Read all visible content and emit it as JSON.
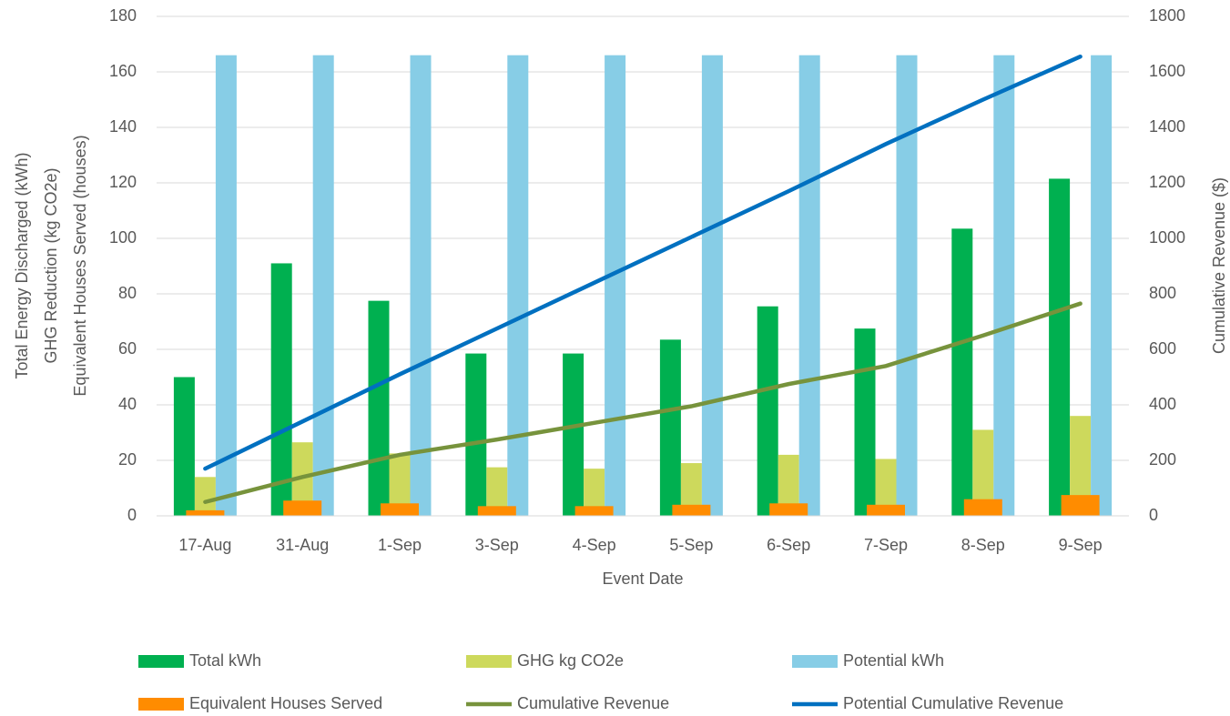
{
  "chart_data": {
    "type": "bar",
    "categories": [
      "17-Aug",
      "31-Aug",
      "1-Sep",
      "3-Sep",
      "4-Sep",
      "5-Sep",
      "6-Sep",
      "7-Sep",
      "8-Sep",
      "9-Sep"
    ],
    "xlabel": "Event Date",
    "ylabel": [
      "Total Energy Discharged (kWh)",
      "GHG Reduction (kg CO2e)",
      "Equivalent Houses Served (houses)"
    ],
    "y2label": "Cumulative Revenue ($)",
    "ylim": [
      0,
      180
    ],
    "yticks": [
      0,
      20,
      40,
      60,
      80,
      100,
      120,
      140,
      160,
      180
    ],
    "y2lim": [
      0,
      1800
    ],
    "y2ticks": [
      0,
      200,
      400,
      600,
      800,
      1000,
      1200,
      1400,
      1600,
      1800
    ],
    "grid": true,
    "series": [
      {
        "name": "Total kWh",
        "type": "bar",
        "color": "#00b050",
        "values": [
          50,
          91,
          77.5,
          58.5,
          58.5,
          63.5,
          75.5,
          67.5,
          103.5,
          121.5
        ]
      },
      {
        "name": "GHG kg CO2e",
        "type": "bar",
        "color": "#cdd95c",
        "values": [
          14,
          26.5,
          22.5,
          17.5,
          17,
          19,
          22,
          20.5,
          31,
          36
        ]
      },
      {
        "name": "Potential kWh",
        "type": "bar",
        "color": "#87cde6",
        "values": [
          166,
          166,
          166,
          166,
          166,
          166,
          166,
          166,
          166,
          166
        ]
      },
      {
        "name": "Equivalent Houses Served",
        "type": "bar",
        "color": "#ff8c00",
        "values": [
          2,
          5.5,
          4.5,
          3.5,
          3.5,
          4,
          4.5,
          4,
          6,
          7.5
        ]
      },
      {
        "name": "Cumulative Revenue",
        "type": "line",
        "axis": "y2",
        "color": "#77933c",
        "values": [
          50,
          140,
          220,
          275,
          335,
          395,
          475,
          540,
          650,
          765
        ]
      },
      {
        "name": "Potential Cumulative Revenue",
        "type": "line",
        "axis": "y2",
        "color": "#0070c0",
        "values": [
          170,
          340,
          510,
          675,
          840,
          1005,
          1170,
          1340,
          1500,
          1655
        ]
      }
    ]
  }
}
